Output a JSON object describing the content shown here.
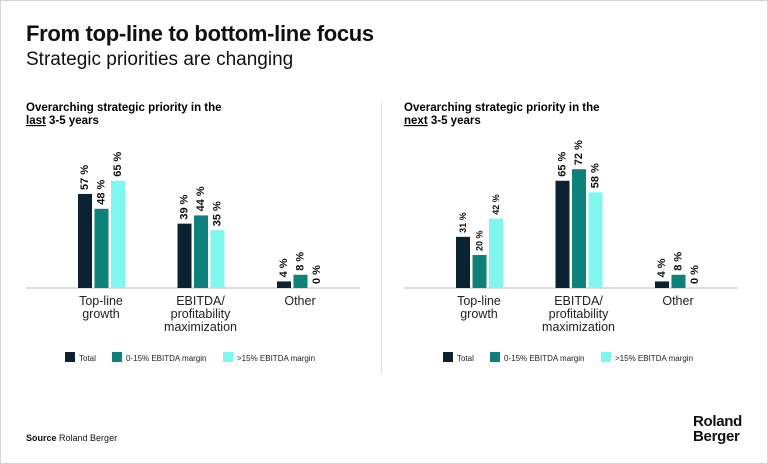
{
  "header": {
    "title": "From top-line to bottom-line focus",
    "subtitle": "Strategic priorities are changing"
  },
  "footer": {
    "source_label": "Source",
    "source_text": "Roland Berger",
    "logo_text": "Roland Berger"
  },
  "colors": {
    "Total": "#0b2233",
    "0-15% EBITDA margin": "#0e817b",
    ">15% EBITDA margin": "#7ff7ef"
  },
  "chart_data": [
    {
      "type": "bar",
      "title_line1": "Overarching strategic priority in the",
      "title_emph": "last",
      "title_rest": " 3-5 years",
      "categories": [
        "Top-line growth",
        "EBITDA/ profitability maximization",
        "Other"
      ],
      "category_lines": [
        [
          "Top-line",
          "growth"
        ],
        [
          "EBITDA/",
          "profitability",
          "maximization"
        ],
        [
          "Other"
        ]
      ],
      "series": [
        {
          "name": "Total",
          "values": [
            57,
            39,
            4
          ]
        },
        {
          "name": "0-15% EBITDA margin",
          "values": [
            48,
            44,
            8
          ]
        },
        {
          "name": ">15% EBITDA margin",
          "values": [
            65,
            35,
            0
          ]
        }
      ],
      "unit": "%",
      "ylim": [
        0,
        75
      ],
      "grid": false,
      "legend": "bottom"
    },
    {
      "type": "bar",
      "title_line1": "Overarching strategic priority in the",
      "title_emph": "next",
      "title_rest": " 3-5 years",
      "categories": [
        "Top-line growth",
        "EBITDA/ profitability maximization",
        "Other"
      ],
      "category_lines": [
        [
          "Top-line",
          "growth"
        ],
        [
          "EBITDA/",
          "profitability",
          "maximization"
        ],
        [
          "Other"
        ]
      ],
      "series": [
        {
          "name": "Total",
          "values": [
            31,
            65,
            4
          ]
        },
        {
          "name": "0-15% EBITDA margin",
          "values": [
            20,
            72,
            8
          ]
        },
        {
          "name": ">15% EBITDA margin",
          "values": [
            42,
            58,
            0
          ]
        }
      ],
      "unit": "%",
      "ylim": [
        0,
        75
      ],
      "grid": false,
      "legend": "bottom"
    }
  ]
}
